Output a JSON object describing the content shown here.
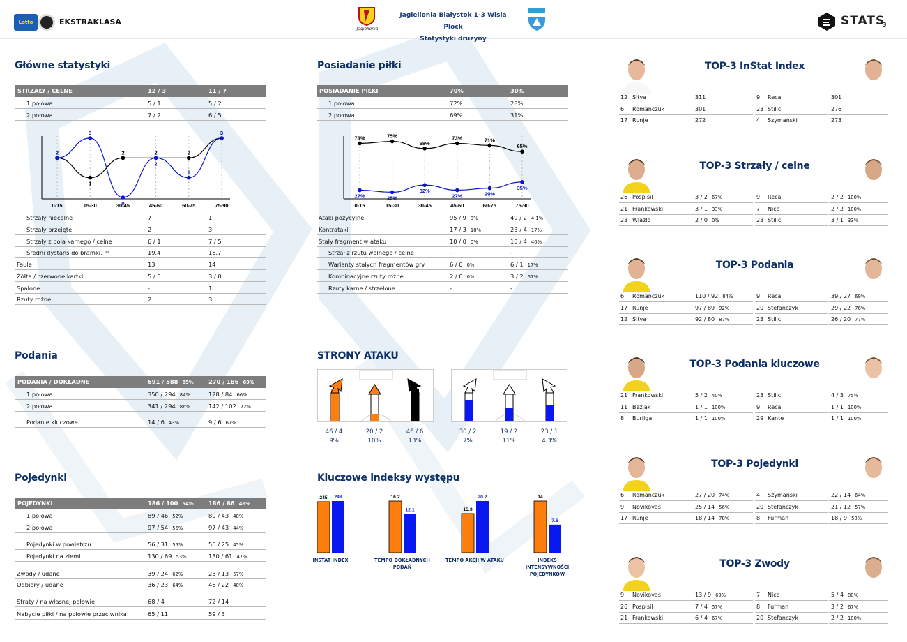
{
  "header": {
    "league_name": "EKSTRAKLASA",
    "league_badge": "Lotto",
    "home_logo_text": "Jagiellonia",
    "match_title": "Jagiellonia Białystok 1-3 Wisla Plock",
    "subtitle": "Statystyki druzyny",
    "stats_brand": "STATS",
    "page_number": "3"
  },
  "main_stats": {
    "title": "Główne statystyki",
    "header": {
      "label": "STRZAŁY / CELNE",
      "home": "12 / 3",
      "away": "11 / 7"
    },
    "halves": [
      {
        "label": "1 połowa",
        "home": "5 / 1",
        "away": "5 / 2"
      },
      {
        "label": "2 połowa",
        "home": "7 / 2",
        "away": "6 / 5"
      }
    ],
    "rows": [
      {
        "label": "Strzały niecelne",
        "home": "7",
        "away": "1",
        "indent": true
      },
      {
        "label": "Strzały przejęte",
        "home": "2",
        "away": "3",
        "indent": true
      },
      {
        "label": "Strzały z pola karnego / celne",
        "home": "6 / 1",
        "away": "7 / 5",
        "indent": true
      },
      {
        "label": "Średni dystans do bramki, m",
        "home": "19.4",
        "away": "16.7",
        "indent": true
      },
      {
        "label": "Faule",
        "home": "13",
        "away": "14",
        "indent": false
      },
      {
        "label": "Żółte / czerwone kartki",
        "home": "5 / 0",
        "away": "3 / 0",
        "indent": false
      },
      {
        "label": "Spalone",
        "home": "-",
        "away": "1",
        "indent": false
      },
      {
        "label": "Rzuty rożne",
        "home": "2",
        "away": "3",
        "indent": false
      }
    ]
  },
  "possession": {
    "title": "Posiadanie piłki",
    "header": {
      "label": "POSIADANIE PIŁKI",
      "home": "70%",
      "away": "30%"
    },
    "halves": [
      {
        "label": "1 połowa",
        "home": "72%",
        "away": "28%"
      },
      {
        "label": "2 połowa",
        "home": "69%",
        "away": "31%"
      }
    ],
    "rows": [
      {
        "label": "Ataki pozycyjne",
        "home": "95 / 9",
        "home_pct": "9%",
        "away": "49 / 2",
        "away_pct": "4.1%",
        "indent": false
      },
      {
        "label": "Kontrataki",
        "home": "17 / 3",
        "home_pct": "18%",
        "away": "23 / 4",
        "away_pct": "17%",
        "indent": false
      },
      {
        "label": "Stały fragment w ataku",
        "home": "10 / 0",
        "home_pct": "0%",
        "away": "10 / 4",
        "away_pct": "40%",
        "indent": false
      },
      {
        "label": "Strzał z rzutu wolnego / celne",
        "home": "-",
        "home_pct": "",
        "away": "-",
        "away_pct": "",
        "indent": true
      },
      {
        "label": "Warianty stałych fragmentów gry",
        "home": "6 / 0",
        "home_pct": "0%",
        "away": "6 / 1",
        "away_pct": "17%",
        "indent": true
      },
      {
        "label": "Kombinacyjne rzuty rożne",
        "home": "2 / 0",
        "home_pct": "0%",
        "away": "3 / 2",
        "away_pct": "67%",
        "indent": true
      },
      {
        "label": "Rzuty karne / strzelone",
        "home": "-",
        "home_pct": "",
        "away": "-",
        "away_pct": "",
        "indent": true
      }
    ]
  },
  "passes": {
    "title": "Podania",
    "header": {
      "label": "PODANIA / DOKŁADNE",
      "home": "691 / 588",
      "home_pct": "85%",
      "away": "270 / 186",
      "away_pct": "69%"
    },
    "rows": [
      {
        "label": "1 połowa",
        "home": "350 / 294",
        "home_pct": "84%",
        "away": "128 / 84",
        "away_pct": "66%"
      },
      {
        "label": "2 połowa",
        "home": "341 / 294",
        "home_pct": "86%",
        "away": "142 / 102",
        "away_pct": "72%"
      },
      {
        "label": "Podanie kluczowe",
        "home": "14 / 6",
        "home_pct": "43%",
        "away": "9 / 6",
        "away_pct": "67%"
      }
    ]
  },
  "duels": {
    "title": "Pojedynki",
    "header": {
      "label": "POJEDYNKI",
      "home": "186 / 100",
      "home_pct": "54%",
      "away": "186 / 86",
      "away_pct": "46%"
    },
    "rows": [
      {
        "label": "1 połowa",
        "home": "89 / 46",
        "home_pct": "52%",
        "away": "89 / 43",
        "away_pct": "48%",
        "indent": true
      },
      {
        "label": "2 połowa",
        "home": "97 / 54",
        "home_pct": "56%",
        "away": "97 / 43",
        "away_pct": "44%",
        "indent": true
      },
      {
        "label": "Pojedynki w powietrzu",
        "home": "56 / 31",
        "home_pct": "55%",
        "away": "56 / 25",
        "away_pct": "45%",
        "indent": true
      },
      {
        "label": "Pojedynki na ziemi",
        "home": "130 / 69",
        "home_pct": "53%",
        "away": "130 / 61",
        "away_pct": "47%",
        "indent": true
      },
      {
        "label": "Zwody / udane",
        "home": "39 / 24",
        "home_pct": "62%",
        "away": "23 / 13",
        "away_pct": "57%",
        "indent": false
      },
      {
        "label": "Odbiory / udane",
        "home": "36 / 23",
        "home_pct": "64%",
        "away": "46 / 22",
        "away_pct": "48%",
        "indent": false
      },
      {
        "label": "Straty / na własnej połowie",
        "home": "68 / 4",
        "home_pct": "",
        "away": "72 / 14",
        "away_pct": "",
        "indent": false
      },
      {
        "label": "Nabycie piłki / na połowie przeciwnika",
        "home": "65 / 11",
        "home_pct": "",
        "away": "59 / 3",
        "away_pct": "",
        "indent": false
      }
    ]
  },
  "attack_sides": {
    "title": "STRONY ATAKU",
    "home": [
      {
        "count": "46 / 4",
        "pct": "9%",
        "share": 0.41
      },
      {
        "count": "20 / 2",
        "pct": "10%",
        "share": 0.18
      },
      {
        "count": "46 / 6",
        "pct": "13%",
        "share": 0.41
      }
    ],
    "away": [
      {
        "count": "30 / 2",
        "pct": "7%",
        "share": 0.4
      },
      {
        "count": "19 / 2",
        "pct": "11%",
        "share": 0.25
      },
      {
        "count": "23 / 1",
        "pct": "4.3%",
        "share": 0.3
      }
    ]
  },
  "key_indexes": {
    "title": "Kluczowe indeksy występu",
    "items": [
      {
        "label": "INSTAT INDEX",
        "home": 245,
        "away": 248,
        "home_label": "245",
        "away_label": "248"
      },
      {
        "label": "TEMPO DOKŁADNYCH PODAŃ",
        "home": 16.2,
        "away": 12.1,
        "home_label": "16.2",
        "away_label": "12.1"
      },
      {
        "label": "TEMPO AKCJI W ATAKU",
        "home": 15.3,
        "away": 20.2,
        "home_label": "15.3",
        "away_label": "20.2"
      },
      {
        "label": "INDEKS INTENSYWNOŚCI POJEDYNKÓW",
        "home": 14,
        "away": 7.6,
        "home_label": "14",
        "away_label": "7.6"
      }
    ]
  },
  "chart_data": [
    {
      "type": "line",
      "categories": [
        "0-15",
        "15-30",
        "30-45",
        "45-60",
        "60-75",
        "75-90"
      ],
      "series": [
        {
          "values": [
            2,
            1,
            2,
            2,
            2,
            3
          ],
          "color": "#000000"
        },
        {
          "values": [
            2,
            3,
            0,
            2,
            1,
            3
          ],
          "color": "#0a18c8"
        }
      ],
      "ylim": [
        0,
        3
      ]
    },
    {
      "type": "line",
      "categories": [
        "0-15",
        "15-30",
        "30-45",
        "45-60",
        "60-75",
        "75-90"
      ],
      "series": [
        {
          "values": [
            73,
            75,
            68,
            73,
            71,
            65
          ],
          "labels": [
            "73%",
            "75%",
            "68%",
            "73%",
            "71%",
            "65%"
          ],
          "color": "#000000"
        },
        {
          "values": [
            27,
            25,
            32,
            27,
            29,
            35
          ],
          "labels": [
            "27%",
            "25%",
            "32%",
            "27%",
            "29%",
            "35%"
          ],
          "color": "#0a18c8"
        }
      ],
      "ylim": [
        0,
        100
      ]
    },
    {
      "type": "bar",
      "categories": [
        "INSTAT INDEX",
        "TEMPO DOKŁADNYCH PODAŃ",
        "TEMPO AKCJI W ATAKU",
        "INDEKS INTENSYWNOŚCI POJEDYNKÓW"
      ],
      "series": [
        {
          "values": [
            245,
            16.2,
            15.3,
            14
          ],
          "color": "#ff7f0e"
        },
        {
          "values": [
            248,
            12.1,
            20.2,
            7.6
          ],
          "color": "#0a18f0"
        }
      ]
    }
  ],
  "tops": [
    {
      "title": "TOP-3 InStat Index",
      "home": [
        {
          "num": "12",
          "name": "Sitya",
          "val": "311",
          "pct": ""
        },
        {
          "num": "6",
          "name": "Romanczuk",
          "val": "301",
          "pct": ""
        },
        {
          "num": "17",
          "name": "Runje",
          "val": "272",
          "pct": ""
        }
      ],
      "away": [
        {
          "num": "9",
          "name": "Reca",
          "val": "301",
          "pct": ""
        },
        {
          "num": "23",
          "name": "Stilic",
          "val": "276",
          "pct": ""
        },
        {
          "num": "4",
          "name": "Szymański",
          "val": "273",
          "pct": ""
        }
      ]
    },
    {
      "title": "TOP-3 Strzały / celne",
      "home": [
        {
          "num": "26",
          "name": "Pospisil",
          "val": "3 / 2",
          "pct": "67%"
        },
        {
          "num": "21",
          "name": "Frankowski",
          "val": "3 / 1",
          "pct": "33%"
        },
        {
          "num": "23",
          "name": "Wlazlo",
          "val": "2 / 0",
          "pct": "0%"
        }
      ],
      "away": [
        {
          "num": "9",
          "name": "Reca",
          "val": "2 / 2",
          "pct": "100%"
        },
        {
          "num": "7",
          "name": "Nico",
          "val": "2 / 2",
          "pct": "100%"
        },
        {
          "num": "23",
          "name": "Stilic",
          "val": "3 / 1",
          "pct": "33%"
        }
      ]
    },
    {
      "title": "TOP-3 Podania",
      "home": [
        {
          "num": "6",
          "name": "Romanczuk",
          "val": "110 / 92",
          "pct": "84%"
        },
        {
          "num": "17",
          "name": "Runje",
          "val": "97 / 89",
          "pct": "92%"
        },
        {
          "num": "12",
          "name": "Sitya",
          "val": "92 / 80",
          "pct": "87%"
        }
      ],
      "away": [
        {
          "num": "9",
          "name": "Reca",
          "val": "39 / 27",
          "pct": "69%"
        },
        {
          "num": "20",
          "name": "Stefanczyk",
          "val": "29 / 22",
          "pct": "76%"
        },
        {
          "num": "23",
          "name": "Stilic",
          "val": "26 / 20",
          "pct": "77%"
        }
      ]
    },
    {
      "title": "TOP-3 Podania kluczowe",
      "home": [
        {
          "num": "21",
          "name": "Frankowski",
          "val": "5 / 2",
          "pct": "40%"
        },
        {
          "num": "11",
          "name": "Bezjak",
          "val": "1 / 1",
          "pct": "100%"
        },
        {
          "num": "8",
          "name": "Burliga",
          "val": "1 / 1",
          "pct": "100%"
        }
      ],
      "away": [
        {
          "num": "23",
          "name": "Stilic",
          "val": "4 / 3",
          "pct": "75%"
        },
        {
          "num": "9",
          "name": "Reca",
          "val": "1 / 1",
          "pct": "100%"
        },
        {
          "num": "29",
          "name": "Kante",
          "val": "1 / 1",
          "pct": "100%"
        }
      ]
    },
    {
      "title": "TOP-3 Pojedynki",
      "home": [
        {
          "num": "6",
          "name": "Romanczuk",
          "val": "27 / 20",
          "pct": "74%"
        },
        {
          "num": "9",
          "name": "Novikovas",
          "val": "25 / 14",
          "pct": "56%"
        },
        {
          "num": "17",
          "name": "Runje",
          "val": "18 / 14",
          "pct": "78%"
        }
      ],
      "away": [
        {
          "num": "4",
          "name": "Szymański",
          "val": "22 / 14",
          "pct": "64%"
        },
        {
          "num": "20",
          "name": "Stefanczyk",
          "val": "21 / 12",
          "pct": "57%"
        },
        {
          "num": "8",
          "name": "Furman",
          "val": "18 / 9",
          "pct": "50%"
        }
      ]
    },
    {
      "title": "TOP-3 Zwody",
      "home": [
        {
          "num": "9",
          "name": "Novikovas",
          "val": "13 / 9",
          "pct": "69%"
        },
        {
          "num": "26",
          "name": "Pospisil",
          "val": "7 / 4",
          "pct": "57%"
        },
        {
          "num": "21",
          "name": "Frankowski",
          "val": "6 / 4",
          "pct": "67%"
        }
      ],
      "away": [
        {
          "num": "7",
          "name": "Nico",
          "val": "5 / 4",
          "pct": "80%"
        },
        {
          "num": "8",
          "name": "Furman",
          "val": "3 / 2",
          "pct": "67%"
        },
        {
          "num": "20",
          "name": "Stefanczyk",
          "val": "2 / 2",
          "pct": "100%"
        }
      ]
    }
  ],
  "colors": {
    "home": "#ff7f0e",
    "away": "#0a18f0",
    "title": "#0d2f66",
    "header_gray": "#7d7d7d"
  }
}
